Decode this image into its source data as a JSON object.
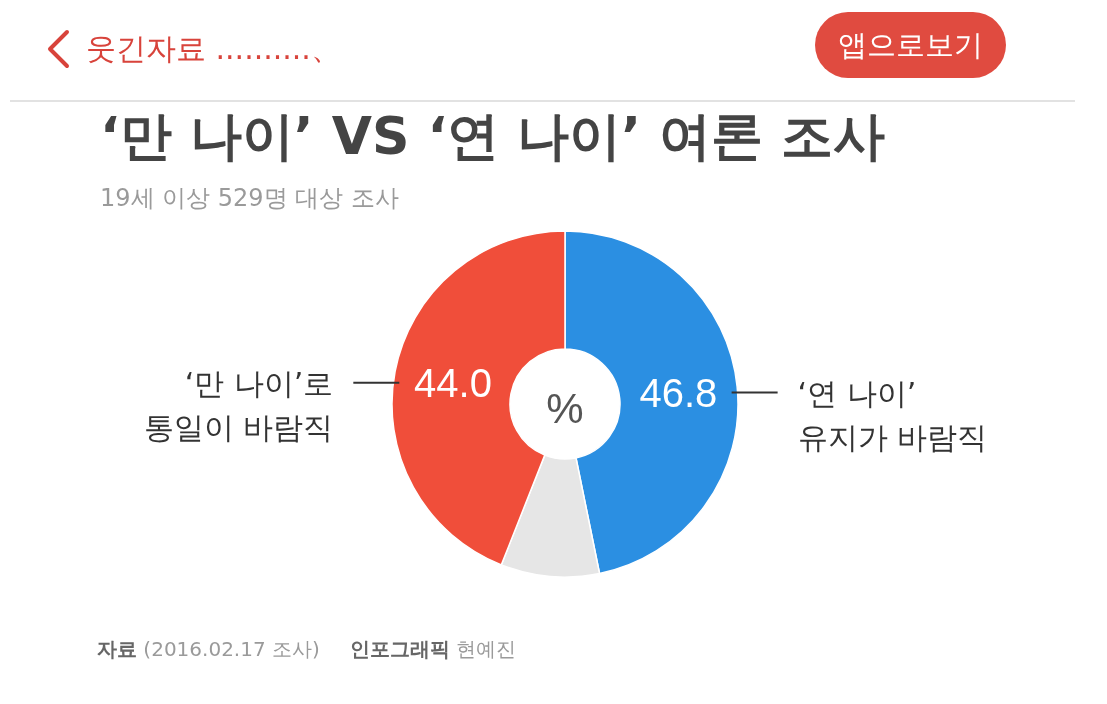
{
  "chart_data": {
    "type": "donut",
    "title": "‘만 나이’ VS ‘연 나이’ 여론 조사",
    "subtitle": "19세 이상 529명 대상 조사",
    "categories": [
      "‘연 나이’ 유지가 바람직",
      null,
      "‘만 나이’로 통일이 바람직"
    ],
    "values": [
      46.8,
      9.2,
      44.0
    ],
    "colors": [
      "#2b8fe2",
      "#e6e6e6",
      "#f04e3a"
    ],
    "value_labels": [
      "46.8",
      null,
      "44.0"
    ],
    "annotations": [
      "%",
      "웃긴자료 ..........、",
      "앱으로보기",
      "**자료** (2016.02.17 조사)",
      "**인포그래픽** 현예진"
    ]
  }
}
